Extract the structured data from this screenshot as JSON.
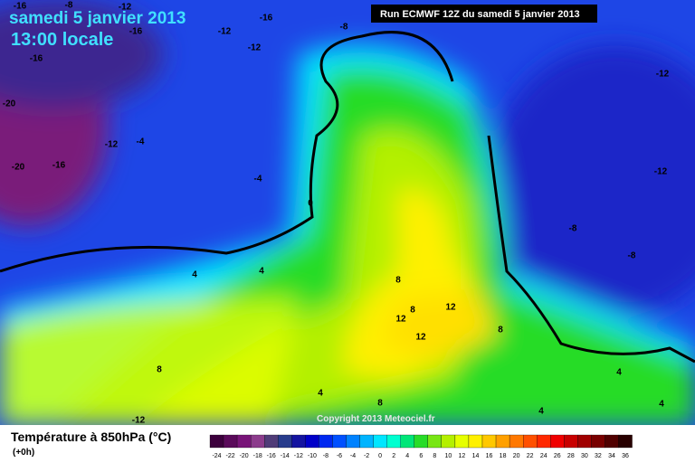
{
  "header": {
    "date": "samedi 5 janvier 2013",
    "time": "13:00 locale",
    "run": "Run ECMWF 12Z du samedi 5 janvier 2013"
  },
  "map": {
    "contour_labels": [
      -16,
      -8,
      -12,
      -16,
      -12,
      -16,
      -12,
      -8,
      -16,
      -20,
      -12,
      -4,
      -20,
      -16,
      -4,
      0,
      -12,
      -12,
      -8,
      -8,
      4,
      4,
      8,
      8,
      12,
      12,
      12,
      8,
      8,
      4,
      8,
      4,
      4,
      4,
      -12
    ],
    "copyright": "Copyright 2013 Meteociel.fr"
  },
  "legend": {
    "title": "Température à 850hPa (°C)",
    "subtitle": "(+0h)",
    "ticks": [
      -24,
      -22,
      -20,
      -18,
      -16,
      -14,
      -12,
      -10,
      -8,
      -6,
      -4,
      -2,
      0,
      2,
      4,
      6,
      8,
      10,
      12,
      14,
      16,
      18,
      20,
      22,
      24,
      26,
      28,
      30,
      32,
      34,
      36
    ],
    "colors": [
      "#3c003c",
      "#5a0a5a",
      "#781478",
      "#8c3c8c",
      "#503c78",
      "#283c8c",
      "#1414a0",
      "#0000c8",
      "#0028f0",
      "#0050ff",
      "#0082ff",
      "#00b4ff",
      "#00e6ff",
      "#00ffd0",
      "#00e678",
      "#28dc28",
      "#78e614",
      "#b4f000",
      "#e6ff00",
      "#fff000",
      "#ffc800",
      "#ffa000",
      "#ff7800",
      "#ff5000",
      "#ff2800",
      "#f00000",
      "#c80000",
      "#a00000",
      "#780000",
      "#500000",
      "#280000"
    ]
  }
}
